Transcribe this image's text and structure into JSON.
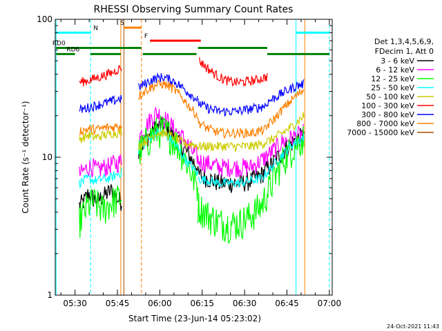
{
  "chart_data": {
    "type": "line",
    "title": "RHESSI Observing Summary Count Rates",
    "xlabel": "Start Time (23-Jun-14 05:23:02)",
    "ylabel": "Count Rate (s⁻¹ detector⁻¹)",
    "x_unit": "minutes after 05:00 UT",
    "x_range": [
      23.0,
      63.0
    ],
    "x_range_minutes": [
      23.0,
      121.0
    ],
    "x_ticks": [
      {
        "t": 30,
        "label": "05:30"
      },
      {
        "t": 45,
        "label": "05:45"
      },
      {
        "t": 60,
        "label": "06:00"
      },
      {
        "t": 75,
        "label": "06:15"
      },
      {
        "t": 90,
        "label": "06:30"
      },
      {
        "t": 105,
        "label": "06:45"
      },
      {
        "t": 120,
        "label": "07:00"
      }
    ],
    "y_scale": "log",
    "y_range": [
      1,
      100
    ],
    "y_ticks": [
      {
        "v": 1,
        "label": "1"
      },
      {
        "v": 10,
        "label": "10"
      },
      {
        "v": 100,
        "label": "100"
      }
    ],
    "grid": false,
    "legend_position": "right",
    "legend_header": [
      "Det 1,3,4,5,6,9,",
      "FDecim 1, Att 0"
    ],
    "series": [
      {
        "name": "3 - 6 keV",
        "color": "#000000",
        "segments": [
          {
            "start": 31.5,
            "end": 46.5,
            "values": [
              4.5,
              4.8,
              5.5,
              5.0,
              4.9,
              5.2,
              5.5,
              5.8,
              5.0,
              4.8
            ]
          },
          {
            "start": 52.5,
            "end": 73.5,
            "values": [
              11.0,
              13.0,
              15.0,
              16.5,
              17.0,
              16.0,
              14.0,
              12.5,
              11.0,
              9.5,
              8.5
            ]
          },
          {
            "start": 73.5,
            "end": 111.0,
            "values": [
              7.5,
              7.0,
              6.5,
              6.5,
              6.5,
              6.8,
              7.5,
              9.0,
              11.0,
              13.0,
              14.5
            ]
          }
        ]
      },
      {
        "name": "6 - 12 keV",
        "color": "#ff00ff",
        "segments": [
          {
            "start": 31.5,
            "end": 46.5,
            "values": [
              7.5,
              8.0,
              8.5,
              8.5,
              8.0,
              8.5,
              8.5,
              9.0,
              9.0,
              9.5
            ]
          },
          {
            "start": 52.5,
            "end": 73.5,
            "values": [
              14.0,
              16.0,
              19.0,
              21.0,
              20.0,
              18.0,
              16.0,
              14.5,
              13.0,
              11.0,
              10.0
            ]
          },
          {
            "start": 73.5,
            "end": 111.0,
            "values": [
              9.5,
              9.0,
              8.5,
              8.5,
              8.5,
              8.5,
              9.5,
              11.0,
              13.0,
              14.0,
              15.0
            ]
          }
        ]
      },
      {
        "name": "12 - 25 keV",
        "color": "#00ff00",
        "segments": [
          {
            "start": 31.5,
            "end": 46.5,
            "values": [
              3.5,
              4.0,
              4.5,
              4.8,
              4.5,
              4.2,
              4.5,
              4.8,
              5.0,
              5.2
            ]
          },
          {
            "start": 52.5,
            "end": 73.5,
            "values": [
              11.0,
              12.5,
              14.0,
              15.5,
              16.0,
              15.0,
              13.5,
              11.5,
              9.5,
              7.5,
              6.0
            ]
          },
          {
            "start": 73.5,
            "end": 111.0,
            "values": [
              4.5,
              3.8,
              3.4,
              3.3,
              3.4,
              3.8,
              4.5,
              6.5,
              9.5,
              12.0,
              14.0
            ]
          }
        ]
      },
      {
        "name": "25 - 50 keV",
        "color": "#00ffff",
        "segments": [
          {
            "start": 31.5,
            "end": 46.5,
            "values": [
              6.5,
              6.8,
              7.0,
              6.8,
              6.8,
              7.0,
              7.0,
              7.2,
              7.5,
              7.8
            ]
          },
          {
            "start": 52.5,
            "end": 73.5,
            "values": [
              11.0,
              12.5,
              14.0,
              15.0,
              15.0,
              14.0,
              12.5,
              11.0,
              9.5,
              8.5,
              7.5
            ]
          },
          {
            "start": 73.5,
            "end": 111.0,
            "values": [
              7.0,
              6.8,
              6.5,
              6.5,
              6.5,
              6.8,
              7.0,
              8.5,
              10.5,
              12.5,
              14.0
            ]
          }
        ]
      },
      {
        "name": "50 - 100 keV",
        "color": "#cccc00",
        "segments": [
          {
            "start": 31.5,
            "end": 46.5,
            "values": [
              13.5,
              14.0,
              14.5,
              14.0,
              14.0,
              14.5,
              14.5,
              15.0,
              15.0,
              15.5
            ]
          },
          {
            "start": 52.5,
            "end": 73.5,
            "values": [
              12.0,
              13.0,
              14.0,
              15.0,
              15.0,
              14.5,
              14.0,
              13.0,
              12.5,
              12.5,
              12.0
            ]
          },
          {
            "start": 73.5,
            "end": 111.0,
            "values": [
              12.0,
              12.0,
              12.0,
              12.0,
              12.0,
              12.0,
              12.5,
              13.5,
              15.0,
              17.0,
              20.0
            ]
          }
        ]
      },
      {
        "name": "100 - 300 keV",
        "color": "#ff0000",
        "segments": [
          {
            "start": 31.5,
            "end": 46.5,
            "values": [
              35.0,
              35.5,
              36.0,
              37.0,
              38.0,
              39.0,
              40.0,
              41.0,
              43.0,
              45.0
            ]
          },
          {
            "start": 74.0,
            "end": 98.0,
            "values": [
              50.0,
              45.0,
              41.0,
              38.0,
              36.0,
              35.0,
              35.0,
              35.5,
              36.0,
              37.0,
              38.5
            ]
          }
        ]
      },
      {
        "name": "300 - 800 keV",
        "color": "#0000ff",
        "segments": [
          {
            "start": 31.5,
            "end": 46.5,
            "values": [
              22.0,
              22.5,
              23.0,
              23.5,
              24.0,
              24.5,
              25.0,
              25.5,
              26.0,
              27.0
            ]
          },
          {
            "start": 52.5,
            "end": 73.5,
            "values": [
              32.0,
              34.0,
              36.0,
              37.5,
              38.0,
              37.0,
              35.5,
              33.0,
              30.5,
              28.0,
              26.0
            ]
          },
          {
            "start": 73.5,
            "end": 98.0,
            "values": [
              25.0,
              23.0,
              22.0,
              21.5,
              21.5,
              21.5,
              22.0,
              22.5,
              23.0,
              24.0
            ]
          },
          {
            "start": 98.0,
            "end": 111.0,
            "values": [
              25.0,
              27.0,
              29.0,
              31.0,
              33.0,
              34.0
            ]
          }
        ]
      },
      {
        "name": "800 - 7000 keV",
        "color": "#ff8000",
        "segments": [
          {
            "start": 31.5,
            "end": 46.5,
            "values": [
              15.5,
              15.8,
              16.0,
              16.0,
              16.0,
              16.2,
              16.5,
              16.5,
              16.8,
              17.0
            ]
          },
          {
            "start": 52.5,
            "end": 73.5,
            "values": [
              28.0,
              30.0,
              32.0,
              33.5,
              34.0,
              33.0,
              31.0,
              28.0,
              25.0,
              22.0,
              20.0
            ]
          },
          {
            "start": 73.5,
            "end": 98.0,
            "values": [
              18.0,
              16.5,
              15.5,
              15.0,
              15.0,
              15.0,
              15.0,
              15.0,
              15.5,
              16.0
            ]
          },
          {
            "start": 98.0,
            "end": 111.0,
            "values": [
              17.0,
              19.0,
              22.0,
              25.0,
              28.0,
              31.0
            ]
          }
        ]
      },
      {
        "name": "7000 - 15000 keV",
        "color": "#a05000",
        "segments": []
      }
    ],
    "vertical_lines": [
      {
        "t": 23.3,
        "color": "#00ffff",
        "dashed": false
      },
      {
        "t": 35.5,
        "color": "#00ffff",
        "dashed": true
      },
      {
        "t": 46.2,
        "color": "#ff8000",
        "dashed": false
      },
      {
        "t": 47.3,
        "color": "#a05000",
        "dashed": false
      },
      {
        "t": 53.5,
        "color": "#ff8000",
        "dashed": true
      },
      {
        "t": 108.2,
        "color": "#00ffff",
        "dashed": false
      },
      {
        "t": 111.3,
        "color": "#ff8000",
        "dashed": false
      },
      {
        "t": 120.0,
        "color": "#00ffff",
        "dashed": true
      }
    ],
    "state_bars": [
      {
        "label": "N",
        "label_t": 36.5,
        "t0": 23.3,
        "t1": 35.5,
        "y": 80.0,
        "color": "#00ffff"
      },
      {
        "label": "",
        "t0": 108.2,
        "t1": 120.0,
        "y": 80.0,
        "color": "#00ffff"
      },
      {
        "label": "S",
        "label_t": 46.0,
        "t0": 47.3,
        "t1": 53.5,
        "y": 87.0,
        "color": "#ff8000"
      },
      {
        "label": "F",
        "label_t": 54.5,
        "t0": 56.5,
        "t1": 74.5,
        "y": 70.0,
        "color": "#ff0000"
      },
      {
        "label": "RD0",
        "label_t": 22.0,
        "t0": 23.3,
        "t1": 53.5,
        "y": 62.0,
        "color": "#008000"
      },
      {
        "label": "RD6",
        "label_t": 27.0,
        "t0": 23.3,
        "t1": 30.0,
        "y": 56.0,
        "color": "#008000"
      },
      {
        "label": "",
        "t0": 35.5,
        "t1": 46.2,
        "y": 56.0,
        "color": "#008000"
      },
      {
        "label": "",
        "t0": 54.0,
        "t1": 73.0,
        "y": 56.0,
        "color": "#008000"
      },
      {
        "label": "",
        "t0": 73.5,
        "t1": 98.0,
        "y": 62.0,
        "color": "#008000"
      },
      {
        "label": "",
        "t0": 98.0,
        "t1": 120.0,
        "y": 56.0,
        "color": "#008000"
      }
    ]
  },
  "footer": {
    "timestamp": "24-Oct-2021 11:43"
  }
}
